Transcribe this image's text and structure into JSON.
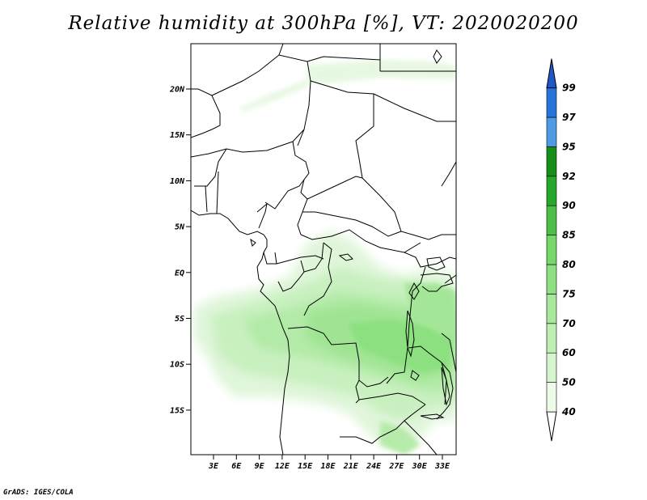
{
  "title": "Relative humidity at 300hPa [%], VT: 2020020200",
  "credit": "GrADS: IGES/COLA",
  "lat_ticks": [
    "20N",
    "15N",
    "10N",
    "5N",
    "EQ",
    "5S",
    "10S",
    "15S"
  ],
  "lon_ticks": [
    "3E",
    "6E",
    "9E",
    "12E",
    "15E",
    "18E",
    "21E",
    "24E",
    "27E",
    "30E",
    "33E"
  ],
  "colorbar": {
    "labels": [
      "40",
      "50",
      "60",
      "70",
      "75",
      "80",
      "85",
      "90",
      "92",
      "95",
      "97",
      "99"
    ],
    "colors": [
      "#ffffff",
      "#eefbe9",
      "#d6f5cf",
      "#bdeeb3",
      "#a8e79c",
      "#8fe083",
      "#76d76b",
      "#4ebf46",
      "#27a82a",
      "#158f18",
      "#4f9be3",
      "#2673d9",
      "#1f58c7"
    ]
  },
  "legend": {
    "lon_start": 0,
    "lon_end": 35,
    "lat_start": -20,
    "lat_end": 25
  }
}
